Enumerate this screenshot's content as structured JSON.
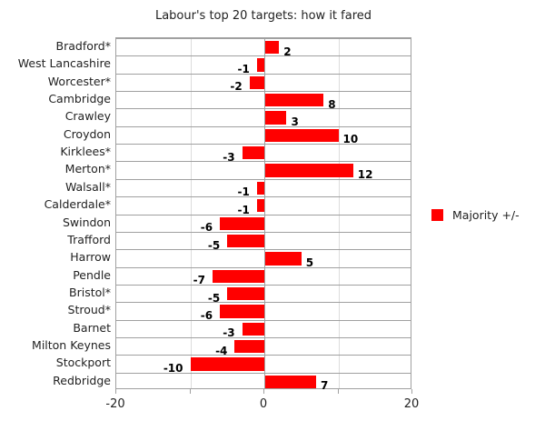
{
  "chart_data": {
    "type": "bar",
    "orientation": "horizontal",
    "title": "Labour's top 20 targets: how it fared",
    "xlabel": "",
    "ylabel": "",
    "xlim": [
      -20,
      20
    ],
    "xticks": [
      "-20",
      "0",
      "20"
    ],
    "grid": true,
    "legend_position": "right",
    "categories": [
      "Bradford*",
      "West Lancashire",
      "Worcester*",
      "Cambridge",
      "Crawley",
      "Croydon",
      "Kirklees*",
      "Merton*",
      "Walsall*",
      "Calderdale*",
      "Swindon",
      "Trafford",
      "Harrow",
      "Pendle",
      "Bristol*",
      "Stroud*",
      "Barnet",
      "Milton Keynes",
      "Stockport",
      "Redbridge"
    ],
    "series": [
      {
        "name": "Majority +/-",
        "color": "#ff0000",
        "values": [
          2,
          -1,
          -2,
          8,
          3,
          10,
          -3,
          12,
          -1,
          -1,
          -6,
          -5,
          5,
          -7,
          -5,
          -6,
          -3,
          -4,
          -10,
          7
        ]
      }
    ]
  },
  "labels": {
    "title": "Labour's top 20 targets: how it fared",
    "legend": "Majority +/-",
    "ticks": [
      "-20",
      "0",
      "20"
    ]
  }
}
